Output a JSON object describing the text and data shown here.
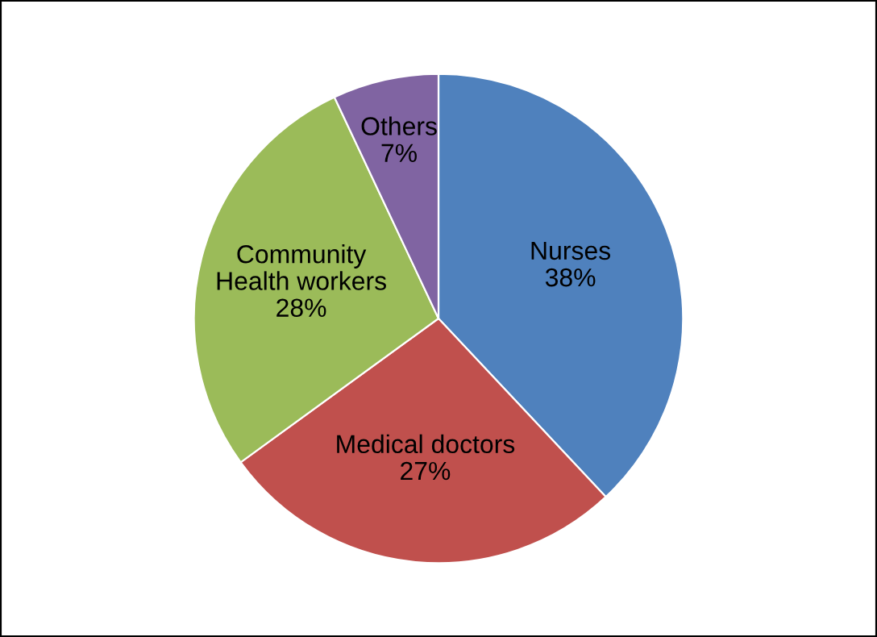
{
  "chart_data": {
    "type": "pie",
    "categories": [
      "Nurses",
      "Medical doctors",
      "Community\nHealth workers",
      "Others"
    ],
    "values": [
      38,
      27,
      28,
      7
    ],
    "value_labels": [
      "38%",
      "27%",
      "28%",
      "7%"
    ],
    "colors": [
      "#4f81bd",
      "#c0504d",
      "#9bbb59",
      "#8064a2"
    ],
    "legend": false
  }
}
